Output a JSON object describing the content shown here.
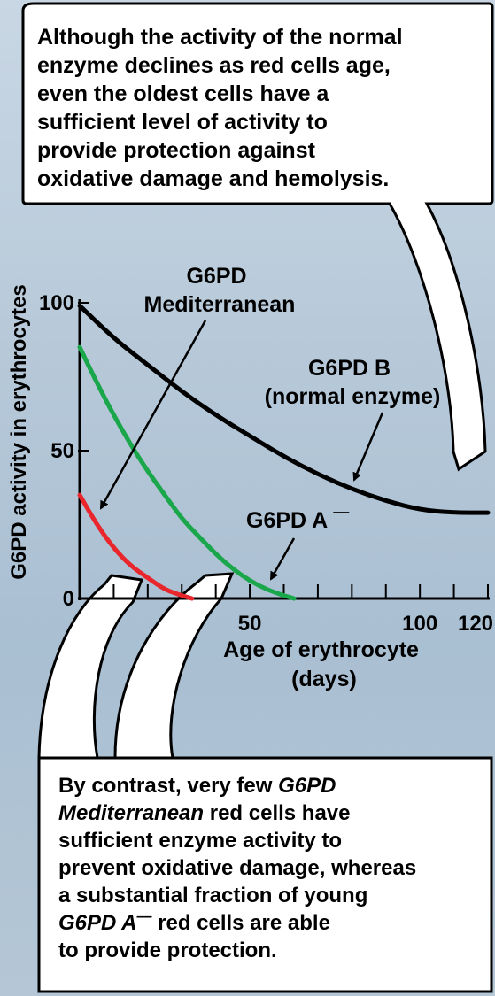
{
  "top_callout": {
    "lines": [
      "Although the activity of the normal",
      "enzyme declines as red cells age,",
      "even the oldest cells have a",
      "sufficient level of activity to",
      "provide protection against",
      "oxidative damage and hemolysis."
    ]
  },
  "bottom_callout": {
    "lines": [
      [
        {
          "t": "By contrast, very few ",
          "i": false
        },
        {
          "t": "G6PD",
          "i": true
        }
      ],
      [
        {
          "t": "Mediterranean",
          "i": true
        },
        {
          "t": " red cells have",
          "i": false
        }
      ],
      [
        {
          "t": "sufficient enzyme activity to",
          "i": false
        }
      ],
      [
        {
          "t": "prevent oxidative damage, whereas",
          "i": false
        }
      ],
      [
        {
          "t": "a substantial fraction of young",
          "i": false
        }
      ],
      [
        {
          "t": "G6PD A",
          "i": true
        },
        {
          "t": "—",
          "i": true,
          "sup": true
        },
        {
          "t": " red cells are able",
          "i": false
        }
      ],
      [
        {
          "t": "to provide protection.",
          "i": false
        }
      ]
    ]
  },
  "chart_data": {
    "type": "line",
    "ylabel": "G6PD activity in erythrocytes",
    "xlabel_lines": [
      "Age of erythrocyte",
      "(days)"
    ],
    "xlim": [
      0,
      120
    ],
    "ylim": [
      0,
      100
    ],
    "x_ticks": [
      0,
      10,
      20,
      30,
      40,
      50,
      60,
      70,
      80,
      90,
      100,
      110,
      120
    ],
    "x_tick_labels": [
      {
        "x": 50,
        "label": "50"
      },
      {
        "x": 100,
        "label": "100"
      },
      {
        "x": 120,
        "label": "120"
      }
    ],
    "y_tick_labels": [
      {
        "y": 0,
        "label": "0"
      },
      {
        "y": 50,
        "label": "50"
      },
      {
        "y": 100,
        "label": "100"
      }
    ],
    "series": [
      {
        "name": "G6PD B",
        "label_lines": [
          "G6PD B",
          "(normal enzyme)"
        ],
        "color": "#000000",
        "x": [
          0,
          10,
          20,
          30,
          40,
          50,
          60,
          70,
          80,
          90,
          100,
          110,
          120
        ],
        "y": [
          99,
          88,
          79,
          70,
          62,
          55,
          48,
          42,
          37,
          33,
          30,
          29,
          29
        ]
      },
      {
        "name": "G6PD A",
        "label_sup": "—",
        "color": "#1aa64a",
        "x": [
          0,
          5,
          10,
          15,
          20,
          25,
          30,
          35,
          40,
          45,
          50,
          55,
          60,
          63
        ],
        "y": [
          85,
          73,
          62,
          52,
          43,
          35,
          27,
          21,
          15,
          10,
          6,
          3,
          1,
          0
        ]
      },
      {
        "name": "G6PD Mediterranean",
        "label_lines": [
          "G6PD",
          "Mediterranean"
        ],
        "color": "#e8262b",
        "x": [
          0,
          5,
          10,
          15,
          20,
          25,
          30,
          33
        ],
        "y": [
          35,
          25,
          17,
          11,
          7,
          3,
          1,
          0
        ]
      }
    ]
  }
}
